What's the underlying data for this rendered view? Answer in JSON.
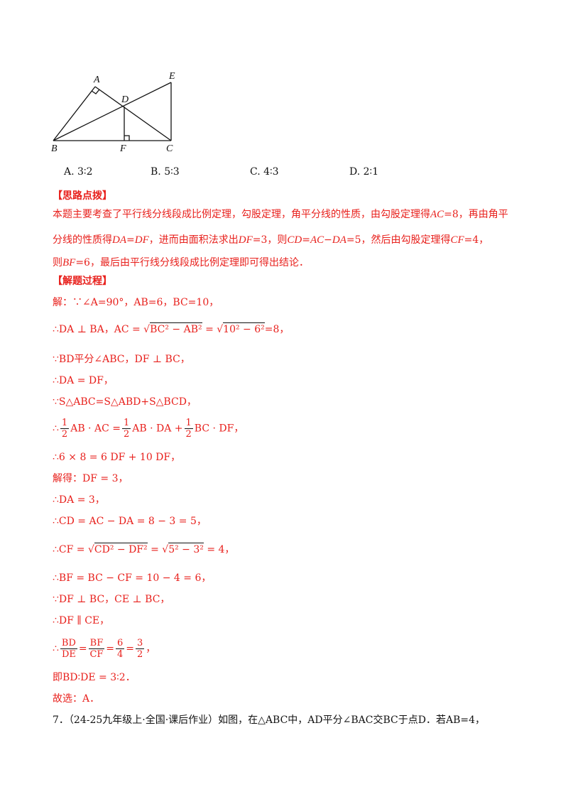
{
  "figure": {
    "labels": {
      "A": "A",
      "B": "B",
      "C": "C",
      "D": "D",
      "E": "E",
      "F": "F"
    }
  },
  "options": [
    {
      "label": "A.",
      "value": "3∶2"
    },
    {
      "label": "B.",
      "value": "5∶3"
    },
    {
      "label": "C.",
      "value": "4∶3"
    },
    {
      "label": "D.",
      "value": "2∶1"
    }
  ],
  "hint": {
    "title": "【思路点拨】",
    "line1_a": "本题主要考查了平行线分线段成比例定理，勾股定理，角平分线的性质，由勾股定理得",
    "line1_b": "AC",
    "line1_c": "=8，再由角平",
    "line2_a": "分线的性质得",
    "line2_b": "DA",
    "line2_c": "=",
    "line2_d": "DF",
    "line2_e": "，进而由面积法求出",
    "line2_f": "DF",
    "line2_g": "=3，则",
    "line2_h": "CD",
    "line2_i": "=",
    "line2_j": "AC",
    "line2_k": "−",
    "line2_l": "DA",
    "line2_m": "=5，然后由勾股定理得",
    "line2_n": "CF",
    "line2_o": "=4，",
    "line3_a": "则",
    "line3_b": "BF",
    "line3_c": "=6，最后由平行线分线段成比例定理即可得出结论．"
  },
  "solution": {
    "title": "【解题过程】",
    "s1": "解：∵∠A=90°，AB=6，BC=10，",
    "s2_a": "∴DA ⊥ BA，AC =",
    "s2_b": "BC² − AB²",
    "s2_c": "=",
    "s2_d": "10² − 6²",
    "s2_e": "=8，",
    "s3": "∵BD平分∠ABC，DF ⊥ BC，",
    "s4": "∴DA = DF，",
    "s5": "∵S△ABC=S△ABD+S△BCD，",
    "s6_a": "∴",
    "s6_b": "AB · AC =",
    "s6_c": "AB · DA +",
    "s6_d": "BC · DF，",
    "half_num": "1",
    "half_den": "2",
    "s7": "∴6 × 8 = 6 DF + 10 DF，",
    "s8": "解得：DF = 3，",
    "s9": "∴DA = 3，",
    "s10": "∴CD = AC − DA = 8 − 3 = 5，",
    "s11_a": "∴CF =",
    "s11_b": "CD² − DF²",
    "s11_c": "=",
    "s11_d": "5² − 3²",
    "s11_e": "= 4，",
    "s12": "∴BF = BC − CF = 10 − 4 = 6，",
    "s13": "∵DF ⊥ BC，CE ⊥ BC，",
    "s14": "∴DF ∥ CE，",
    "s15_a": "∴",
    "f1_num": "BD",
    "f1_den": "DE",
    "f2_num": "BF",
    "f2_den": "CF",
    "f3_num": "6",
    "f3_den": "4",
    "f4_num": "3",
    "f4_den": "2",
    "eq": "=",
    "s15_end": "，",
    "s16": "即BD∶DE = 3∶2．",
    "s17": "故选：A．"
  },
  "next_question": "7．（24-25九年级上·全国·课后作业）如图，在△ABC中，AD平分∠BAC交BC于点D．若AB=4，"
}
